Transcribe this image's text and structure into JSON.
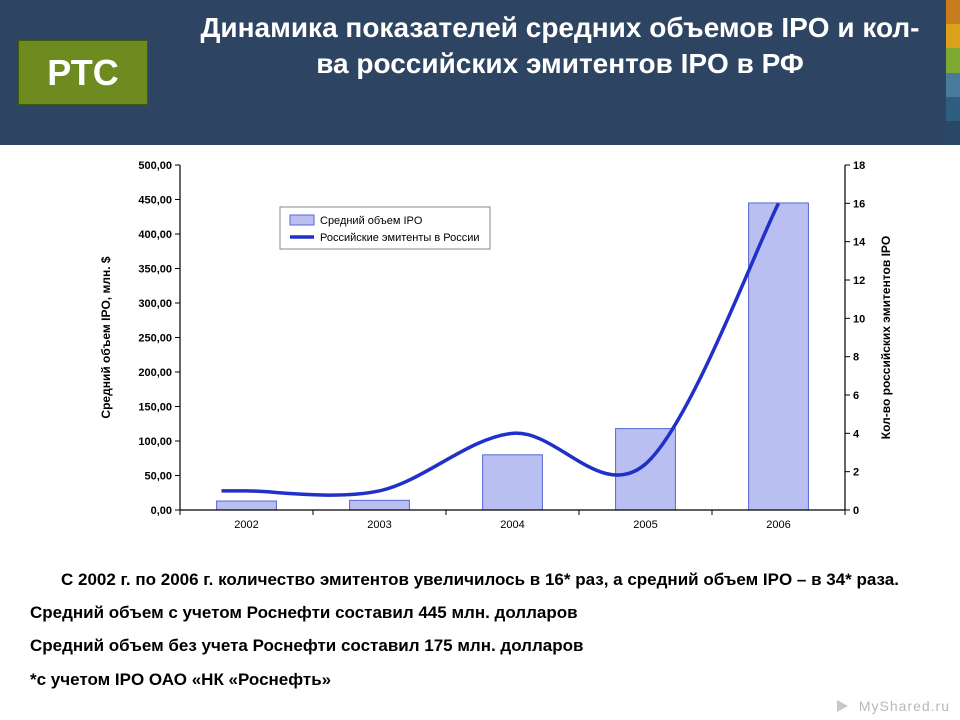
{
  "header": {
    "title": "Динамика показателей средних объемов IPO и кол-ва российских эмитентов IPO в РФ",
    "logo_text": "РТС",
    "band_color": "#2d4562",
    "logo_bg": "#6d8b1f",
    "title_color": "#ffffff",
    "title_fontsize": 28,
    "stripe_colors": [
      "#c77d1e",
      "#d9a21a",
      "#7da832",
      "#4a7a9c",
      "#2f5d82",
      "#294766"
    ]
  },
  "chart": {
    "type": "bar+line",
    "categories": [
      "2002",
      "2003",
      "2004",
      "2005",
      "2006"
    ],
    "bar_values": [
      13,
      14,
      80,
      118,
      445
    ],
    "line_values": [
      1,
      1,
      4,
      2.4,
      16
    ],
    "bar_label": "Средний объем IPO",
    "line_label": "Российские эмитенты в России",
    "y_left_label": "Средний объем IPO, млн. $",
    "y_right_label": "Кол-во российских эмитентов IPO",
    "y_left_min": 0,
    "y_left_max": 500,
    "y_left_step": 50,
    "y_right_min": 0,
    "y_right_max": 18,
    "y_right_step": 2,
    "bar_fill": "#b9bff0",
    "bar_stroke": "#5a66d0",
    "line_color": "#2030c8",
    "line_width": 3.5,
    "axis_color": "#000000",
    "tick_fontsize": 11,
    "label_fontsize": 12,
    "bar_width": 0.45,
    "background_color": "#ffffff",
    "left_tick_labels": [
      "0,00",
      "50,00",
      "100,00",
      "150,00",
      "200,00",
      "250,00",
      "300,00",
      "350,00",
      "400,00",
      "450,00",
      "500,00"
    ],
    "right_tick_labels": [
      "0",
      "2",
      "4",
      "6",
      "8",
      "10",
      "12",
      "14",
      "16",
      "18"
    ],
    "legend_bg": "#ffffff",
    "legend_border": "#888888"
  },
  "captions": {
    "c1": "С 2002 г. по 2006 г. количество эмитентов увеличилось в 16* раз, а средний объем IPO – в 34* раза.",
    "c2": "Средний объем с учетом Роснефти составил 445 млн. долларов",
    "c3": "Средний объем без учета Роснефти составил 175 млн. долларов",
    "c4": "*с учетом IPO ОАО «НК «Роснефть»"
  },
  "watermark": "MyShared.ru"
}
